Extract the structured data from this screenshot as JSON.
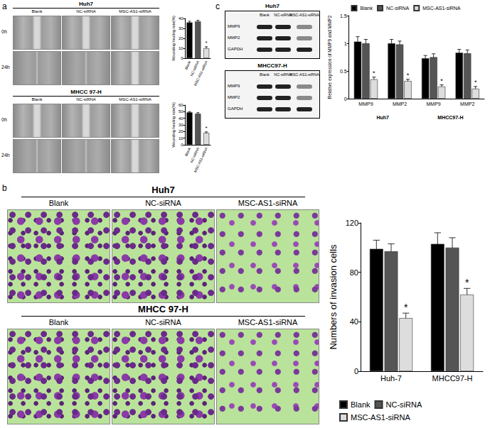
{
  "figure": {
    "panel_a": {
      "label": "a",
      "wound_images": [
        {
          "cell_line": "Huh7",
          "columns": [
            "Blank",
            "NC-siRNA",
            "MSC-AS1-siRNA"
          ],
          "rows": [
            "0h",
            "24h"
          ]
        },
        {
          "cell_line": "MHCC 97-H",
          "columns": [
            "Blank",
            "NC-siRNA",
            "MSC-AS1-siRNA"
          ],
          "rows": [
            "0h",
            "24h"
          ]
        }
      ]
    },
    "panel_b": {
      "label": "b",
      "invasion_images": [
        {
          "cell_line": "Huh7",
          "columns": [
            "Blank",
            "NC-siRNA",
            "MSC-AS1-siRNA"
          ]
        },
        {
          "cell_line": "MHCC 97-H",
          "columns": [
            "Blank",
            "NC-siRNA",
            "MSC-AS1-siRNA"
          ]
        }
      ]
    },
    "panel_c": {
      "label": "c",
      "blots": [
        {
          "cell_line": "Huh7",
          "columns": [
            "Blank",
            "NC-siRNA",
            "MSC-AS1-siRNA"
          ],
          "rows": [
            "MMP9",
            "MMP2",
            "GAPDH"
          ]
        },
        {
          "cell_line": "MHCC97-H",
          "columns": [
            "Blank",
            "NC-siRNA",
            "MSC-AS1-siRNA"
          ],
          "rows": [
            "MMP9",
            "MMP2",
            "GAPDH"
          ]
        }
      ]
    }
  },
  "chart_data": [
    {
      "type": "bar",
      "y_label": "Wounding healing rate(%)",
      "categories": [
        "Blank",
        "NC-siRNA",
        "MSC-AS1-siRNA"
      ],
      "values": [
        36,
        37,
        10
      ],
      "errors": [
        1.2,
        1.2,
        1.5
      ],
      "colors": [
        "#000000",
        "#555555",
        "#dddddd"
      ],
      "annotations": [
        {
          "index": 2,
          "text": "*"
        }
      ],
      "ylim": [
        0,
        40
      ],
      "yticks": [
        0,
        10,
        20,
        30,
        40
      ],
      "grid": false
    },
    {
      "type": "bar",
      "y_label": "Wounding healing rate(%)",
      "categories": [
        "Blank",
        "NC-siRNA",
        "MSC-AS1-siRNA"
      ],
      "values": [
        49,
        47,
        18
      ],
      "errors": [
        1.2,
        1.5,
        1.5
      ],
      "colors": [
        "#000000",
        "#555555",
        "#dddddd"
      ],
      "annotations": [
        {
          "index": 2,
          "text": "*"
        }
      ],
      "ylim": [
        0,
        60
      ],
      "yticks": [
        0,
        10,
        20,
        30,
        40,
        50,
        60
      ],
      "grid": false
    },
    {
      "type": "bar",
      "y_label": "Relative expression of MMP9 and MMP2",
      "categories": [
        "MMP9",
        "MMP2",
        "MMP9",
        "MMP2"
      ],
      "groups": [
        "Huh7",
        "MHCC97-H"
      ],
      "series": [
        {
          "name": "Blank",
          "color": "#000000",
          "values": [
            1.03,
            1.0,
            0.73,
            0.83
          ],
          "errors": [
            0.09,
            0.07,
            0.05,
            0.06
          ]
        },
        {
          "name": "NC-siRNA",
          "color": "#555555",
          "values": [
            1.0,
            0.98,
            0.75,
            0.82
          ],
          "errors": [
            0.07,
            0.06,
            0.06,
            0.06
          ]
        },
        {
          "name": "MSC-AS1-siRNA",
          "color": "#dddddd",
          "values": [
            0.35,
            0.32,
            0.22,
            0.18
          ],
          "errors": [
            0.04,
            0.03,
            0.03,
            0.04
          ],
          "annotations": [
            {
              "index": 0,
              "text": "*"
            },
            {
              "index": 1,
              "text": "*"
            },
            {
              "index": 2,
              "text": "*"
            },
            {
              "index": 3,
              "text": "*"
            }
          ]
        }
      ],
      "ylim": [
        0,
        1.5
      ],
      "yticks": [
        0,
        0.5,
        1,
        1.5
      ],
      "legend": "top",
      "grid": false
    },
    {
      "type": "bar",
      "y_label": "Numbers of invasion cells",
      "categories": [
        "Huh-7",
        "MHCC97-H"
      ],
      "series": [
        {
          "name": "Blank",
          "color": "#000000",
          "values": [
            99,
            103
          ],
          "errors": [
            7,
            9
          ]
        },
        {
          "name": "NC-siRNA",
          "color": "#555555",
          "values": [
            97,
            100
          ],
          "errors": [
            6,
            8
          ]
        },
        {
          "name": "MSC-AS1-siRNA",
          "color": "#dddddd",
          "values": [
            43,
            62
          ],
          "errors": [
            4,
            5
          ],
          "annotations": [
            {
              "index": 0,
              "text": "*"
            },
            {
              "index": 1,
              "text": "*"
            }
          ]
        }
      ],
      "ylim": [
        0,
        120
      ],
      "yticks": [
        0,
        40,
        80,
        120
      ],
      "legend": "bottom",
      "grid": false
    }
  ]
}
